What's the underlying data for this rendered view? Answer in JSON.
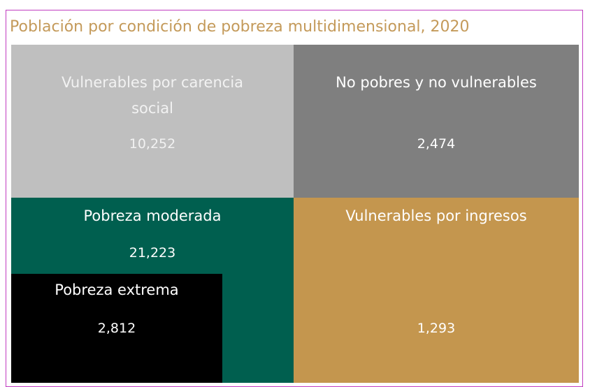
{
  "title": "Población por condición de pobreza multidimensional, 2020",
  "tiles": [
    {
      "label": "Vulnerables por carencia social",
      "value": "10,252"
    },
    {
      "label": "No pobres y no vulnerables",
      "value": "2,474"
    },
    {
      "label": "Pobreza moderada",
      "value": "21,223"
    },
    {
      "label": "Vulnerables por ingresos",
      "value": "1,293"
    },
    {
      "label": "Pobreza extrema",
      "value": "2,812"
    }
  ]
}
